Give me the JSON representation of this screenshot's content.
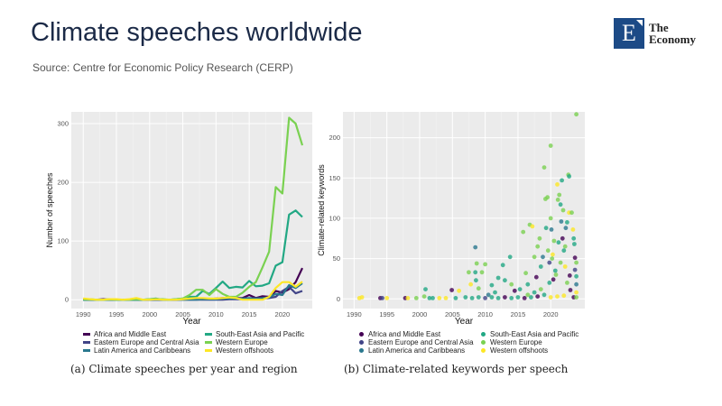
{
  "header": {
    "title": "Climate speeches worldwide",
    "source": "Source: Centre for Economic Policy Research (CERP)",
    "logo_text": "The Economy",
    "logo_letter": "E"
  },
  "regions": [
    "Africa and Middle East",
    "Eastern Europe and Central Asia",
    "Latin America and Caribbeans",
    "South-East Asia and Pacific",
    "Western Europe",
    "Western offshoots"
  ],
  "colors": [
    "#440154",
    "#414487",
    "#2A788E",
    "#22A884",
    "#7AD151",
    "#FDE725"
  ],
  "chart_data": [
    {
      "type": "line",
      "caption": "(a) Climate speeches per year and region",
      "xlabel": "Year",
      "ylabel": "Number of speeches",
      "xlim": [
        1988.2,
        2024.5
      ],
      "ylim": [
        -15,
        320
      ],
      "xticks": [
        1990,
        1995,
        2000,
        2005,
        2010,
        2015,
        2020
      ],
      "yticks": [
        0,
        100,
        200,
        300
      ],
      "x": [
        1990,
        1991,
        1992,
        1993,
        1994,
        1995,
        1996,
        1997,
        1998,
        1999,
        2000,
        2001,
        2002,
        2003,
        2004,
        2005,
        2006,
        2007,
        2008,
        2009,
        2010,
        2011,
        2012,
        2013,
        2014,
        2015,
        2016,
        2017,
        2018,
        2019,
        2020,
        2021,
        2022,
        2023
      ],
      "series": [
        {
          "name": "Africa and Middle East",
          "values": [
            0,
            0,
            0,
            1,
            0,
            0,
            0,
            0,
            0,
            0,
            0,
            0,
            0,
            0,
            0,
            1,
            1,
            1,
            1,
            1,
            2,
            3,
            4,
            3,
            3,
            8,
            3,
            6,
            5,
            15,
            12,
            18,
            30,
            54
          ]
        },
        {
          "name": "Eastern Europe and Central Asia",
          "values": [
            0,
            0,
            0,
            0,
            0,
            0,
            0,
            0,
            0,
            0,
            0,
            0,
            0,
            0,
            0,
            0,
            0,
            0,
            0,
            0,
            0,
            0,
            1,
            1,
            1,
            2,
            1,
            2,
            3,
            5,
            15,
            22,
            11,
            15
          ]
        },
        {
          "name": "Latin America and Caribbeans",
          "values": [
            0,
            0,
            0,
            0,
            0,
            0,
            0,
            0,
            0,
            0,
            0,
            0,
            0,
            0,
            0,
            0,
            0,
            0,
            1,
            1,
            1,
            2,
            2,
            2,
            2,
            3,
            2,
            3,
            4,
            10,
            8,
            25,
            20,
            28
          ]
        },
        {
          "name": "South-East Asia and Pacific",
          "values": [
            0,
            0,
            0,
            0,
            0,
            0,
            0,
            0,
            0,
            0,
            1,
            2,
            0,
            0,
            1,
            2,
            5,
            5,
            15,
            10,
            20,
            31,
            20,
            22,
            21,
            32,
            23,
            24,
            28,
            58,
            64,
            145,
            152,
            141
          ]
        },
        {
          "name": "Western Europe",
          "values": [
            1,
            1,
            0,
            0,
            1,
            0,
            0,
            0,
            1,
            0,
            1,
            1,
            1,
            0,
            1,
            2,
            8,
            17,
            17,
            8,
            18,
            10,
            5,
            5,
            12,
            22,
            30,
            55,
            82,
            192,
            181,
            310,
            300,
            263
          ]
        },
        {
          "name": "Western offshoots",
          "values": [
            2,
            1,
            0,
            0,
            1,
            1,
            0,
            1,
            3,
            0,
            0,
            1,
            0,
            0,
            0,
            1,
            2,
            3,
            3,
            2,
            2,
            3,
            4,
            3,
            0,
            0,
            0,
            0,
            5,
            20,
            30,
            30,
            22,
            31
          ]
        }
      ]
    },
    {
      "type": "scatter",
      "caption": "(b) Climate-related keywords per speech",
      "xlabel": "Year",
      "ylabel": "Climate-related keywords",
      "xlim": [
        1988.3,
        2025.2
      ],
      "ylim": [
        -12,
        232
      ],
      "xticks": [
        1990,
        1995,
        2000,
        2005,
        2010,
        2015,
        2020
      ],
      "yticks": [
        0,
        50,
        100,
        150,
        200
      ],
      "points": [
        [
          1990.8,
          1,
          5
        ],
        [
          1991.2,
          2,
          5
        ],
        [
          1994,
          1,
          0
        ],
        [
          1994.3,
          1,
          1
        ],
        [
          1995,
          1,
          5
        ],
        [
          1997.8,
          1,
          0
        ],
        [
          1998.2,
          1,
          5
        ],
        [
          1999.5,
          1,
          4
        ],
        [
          2000.9,
          12,
          3
        ],
        [
          2000.7,
          3,
          4
        ],
        [
          2001.5,
          1,
          3
        ],
        [
          2002,
          1,
          3
        ],
        [
          2003,
          1,
          5
        ],
        [
          2004,
          1,
          5
        ],
        [
          2004.9,
          11,
          0
        ],
        [
          2005.5,
          1,
          3
        ],
        [
          2006,
          10,
          5
        ],
        [
          2007.5,
          33,
          4
        ],
        [
          2007.8,
          18,
          5
        ],
        [
          2008.5,
          64,
          2
        ],
        [
          2008.5,
          33,
          3
        ],
        [
          2008.6,
          23,
          3
        ],
        [
          2008.7,
          44,
          4
        ],
        [
          2009.5,
          33,
          4
        ],
        [
          2010,
          43,
          4
        ],
        [
          2009,
          13,
          4
        ],
        [
          2010.5,
          5,
          2
        ],
        [
          2011,
          17,
          3
        ],
        [
          2011.5,
          8,
          3
        ],
        [
          2012,
          26,
          3
        ],
        [
          2012.7,
          42,
          3
        ],
        [
          2013,
          23,
          3
        ],
        [
          2013.8,
          52,
          3
        ],
        [
          2014,
          18,
          4
        ],
        [
          2014.5,
          10,
          0
        ],
        [
          2015.3,
          12,
          3
        ],
        [
          2015.8,
          83,
          4
        ],
        [
          2016.2,
          32,
          4
        ],
        [
          2016.5,
          18,
          3
        ],
        [
          2016.8,
          92,
          4
        ],
        [
          2017.2,
          90,
          5
        ],
        [
          2017.5,
          52,
          4
        ],
        [
          2017.8,
          27,
          0
        ],
        [
          2018,
          65,
          4
        ],
        [
          2018.3,
          75,
          4
        ],
        [
          2018.5,
          40,
          3
        ],
        [
          2018.8,
          52,
          2
        ],
        [
          2019,
          163,
          4
        ],
        [
          2019.2,
          124,
          4
        ],
        [
          2019.5,
          126,
          4
        ],
        [
          2019.3,
          88,
          3
        ],
        [
          2019.6,
          60,
          4
        ],
        [
          2019.8,
          45,
          1
        ],
        [
          2020,
          190,
          4
        ],
        [
          2020,
          100,
          4
        ],
        [
          2020.1,
          86,
          2
        ],
        [
          2020.3,
          55,
          5
        ],
        [
          2020.4,
          24,
          0
        ],
        [
          2020.5,
          72,
          4
        ],
        [
          2020.7,
          35,
          3
        ],
        [
          2021,
          142,
          5
        ],
        [
          2021.1,
          123,
          4
        ],
        [
          2021.3,
          129,
          4
        ],
        [
          2021.5,
          117,
          3
        ],
        [
          2021.6,
          96,
          2
        ],
        [
          2021.7,
          147,
          3
        ],
        [
          2021.8,
          75,
          0
        ],
        [
          2021.9,
          110,
          4
        ],
        [
          2022,
          60,
          3
        ],
        [
          2022.2,
          40,
          5
        ],
        [
          2022.3,
          88,
          2
        ],
        [
          2022.5,
          95,
          3
        ],
        [
          2022.7,
          154,
          4
        ],
        [
          2022.8,
          152,
          3
        ],
        [
          2022.8,
          107,
          5
        ],
        [
          2022.9,
          29,
          0
        ],
        [
          2023,
          11,
          0
        ],
        [
          2023.2,
          107,
          4
        ],
        [
          2023.4,
          86,
          5
        ],
        [
          2023.5,
          75,
          3
        ],
        [
          2023.6,
          68,
          3
        ],
        [
          2023.7,
          51,
          0
        ],
        [
          2023.7,
          36,
          1
        ],
        [
          2023.9,
          229,
          4
        ],
        [
          2023.9,
          18,
          2
        ],
        [
          2023.5,
          2,
          0
        ],
        [
          2022,
          4,
          5
        ],
        [
          2021,
          3,
          5
        ],
        [
          2020,
          2,
          5
        ],
        [
          2019,
          5,
          3
        ],
        [
          2018,
          3,
          0
        ],
        [
          2017,
          2,
          3
        ],
        [
          2016,
          1,
          0
        ],
        [
          2015,
          2,
          3
        ],
        [
          2014,
          1,
          3
        ],
        [
          2013,
          2,
          0
        ],
        [
          2012,
          1,
          3
        ],
        [
          2011,
          2,
          3
        ],
        [
          2010,
          1,
          1
        ],
        [
          2009,
          2,
          3
        ],
        [
          2008,
          1,
          3
        ],
        [
          2007,
          2,
          3
        ],
        [
          2023.9,
          2,
          4
        ],
        [
          2023.9,
          45,
          4
        ],
        [
          2023.9,
          28,
          3
        ],
        [
          2023.9,
          8,
          5
        ],
        [
          2022.5,
          20,
          4
        ],
        [
          2021.5,
          45,
          4
        ],
        [
          2020.8,
          30,
          4
        ],
        [
          2019.8,
          20,
          3
        ],
        [
          2018.5,
          12,
          4
        ],
        [
          2017.5,
          8,
          3
        ],
        [
          2016.5,
          5,
          4
        ],
        [
          2022.2,
          65,
          4
        ],
        [
          2021.2,
          70,
          3
        ],
        [
          2020.2,
          50,
          4
        ]
      ]
    }
  ]
}
